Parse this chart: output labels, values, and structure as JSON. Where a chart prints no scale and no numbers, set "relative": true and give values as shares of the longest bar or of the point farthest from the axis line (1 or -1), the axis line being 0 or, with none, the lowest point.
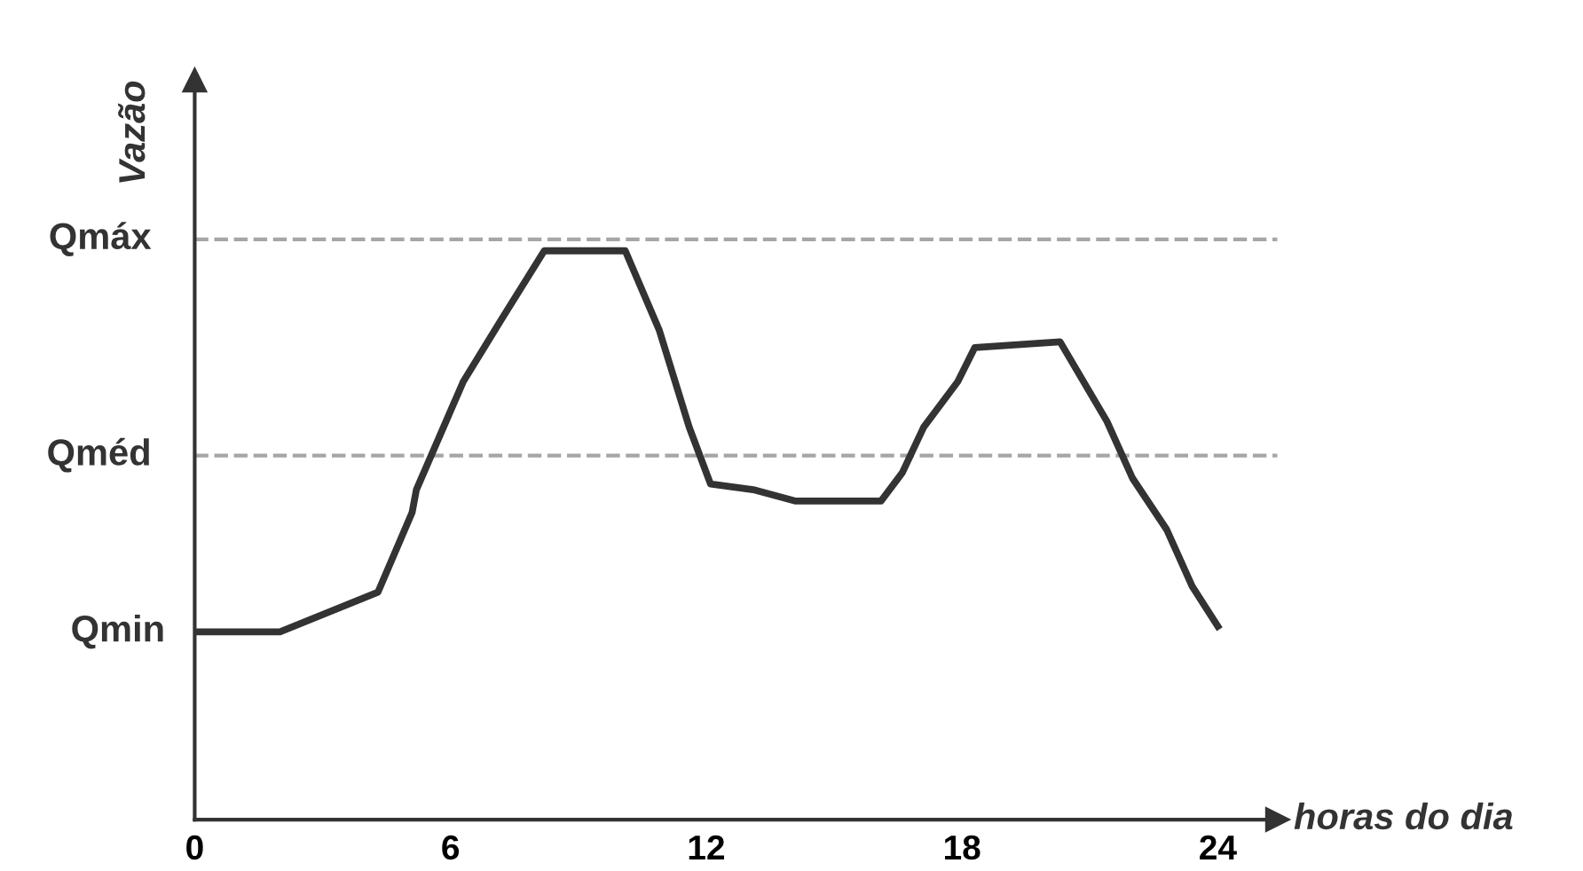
{
  "chart_data": {
    "type": "line",
    "relative": true,
    "xlabel": "horas do dia",
    "ylabel": "Vazão",
    "x": [
      0,
      2.0,
      4.3,
      5.1,
      5.2,
      6.3,
      7.2,
      8.2,
      10.1,
      10.9,
      11.6,
      12.1,
      13.1,
      14.1,
      16.1,
      16.6,
      17.1,
      17.9,
      18.3,
      20.3,
      21.4,
      22.0,
      22.8,
      23.4,
      24.0
    ],
    "series": [
      {
        "color": "#333333",
        "values": [
          0.33,
          0.33,
          0.4,
          0.54,
          0.58,
          0.77,
          0.88,
          1.0,
          1.0,
          0.86,
          0.69,
          0.59,
          0.58,
          0.56,
          0.56,
          0.61,
          0.69,
          0.77,
          0.83,
          0.84,
          0.7,
          0.6,
          0.51,
          0.41,
          0.34
        ]
      }
    ],
    "xlim": [
      0,
      25.4
    ],
    "xticks": [
      0,
      6,
      12,
      18,
      24
    ],
    "tick_labels": "x",
    "grid": false,
    "legend": false,
    "marker": "none",
    "line_style": "solid",
    "ref_lines": [
      {
        "axis": "y",
        "value": 1.02,
        "label": "Qmáx",
        "color": "#a6a6a6",
        "line_style": "dashed"
      },
      {
        "axis": "y",
        "value": 0.64,
        "label": "Qméd",
        "color": "#a6a6a6",
        "line_style": "dashed"
      }
    ],
    "annotations": [
      {
        "text": "Qmin",
        "x": 0,
        "y": 0.33
      }
    ]
  }
}
